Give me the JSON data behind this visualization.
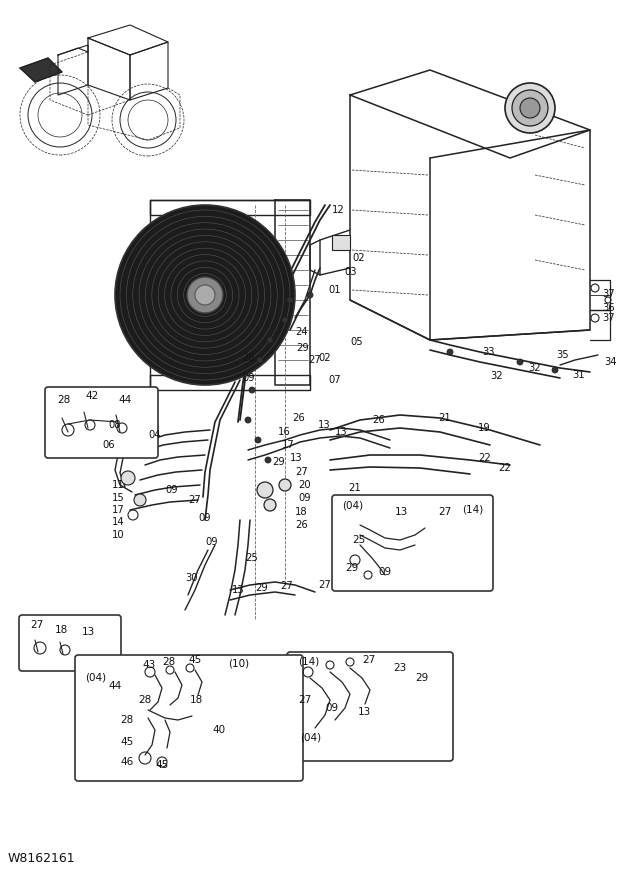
{
  "fig_width": 6.2,
  "fig_height": 8.73,
  "dpi": 100,
  "bg_color": "#ffffff",
  "watermark": "W8162161",
  "line_color": "#222222",
  "label_fontsize": 7.0,
  "label_color": "#111111"
}
